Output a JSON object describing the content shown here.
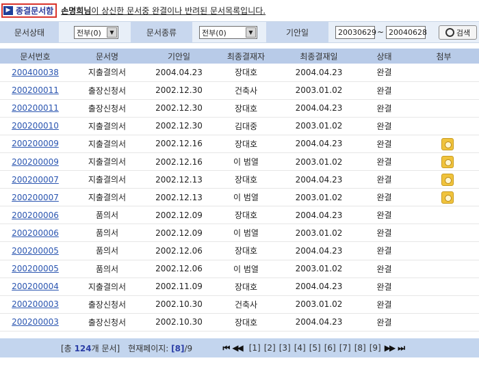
{
  "header": {
    "box_label": "종결문서함",
    "user_name": "손명희님",
    "message_rest": "이 상신한 문서중 완결이나 반려된 문서목록입니다."
  },
  "search": {
    "status_label": "문서상태",
    "status_value": "전부(0)",
    "type_label": "문서종류",
    "type_value": "전부(0)",
    "date_label": "기안일",
    "date_from": "20030629",
    "date_sep": "~",
    "date_to": "20040628",
    "search_button": "검색"
  },
  "table": {
    "columns": [
      "문서번호",
      "문서명",
      "기안일",
      "최종결재자",
      "최종결재일",
      "상태",
      "첨부"
    ],
    "rows": [
      {
        "id": "200400038",
        "name": "지출결의서",
        "draft": "2004.04.23",
        "approver": "장대호",
        "final": "2004.04.23",
        "status": "완결",
        "attach": false
      },
      {
        "id": "200200011",
        "name": "출장신청서",
        "draft": "2002.12.30",
        "approver": "건축사",
        "final": "2003.01.02",
        "status": "완결",
        "attach": false
      },
      {
        "id": "200200011",
        "name": "출장신청서",
        "draft": "2002.12.30",
        "approver": "장대호",
        "final": "2004.04.23",
        "status": "완결",
        "attach": false
      },
      {
        "id": "200200010",
        "name": "지출결의서",
        "draft": "2002.12.30",
        "approver": "김대중",
        "final": "2003.01.02",
        "status": "완결",
        "attach": false
      },
      {
        "id": "200200009",
        "name": "지출결의서",
        "draft": "2002.12.16",
        "approver": "장대호",
        "final": "2004.04.23",
        "status": "완결",
        "attach": true
      },
      {
        "id": "200200009",
        "name": "지출결의서",
        "draft": "2002.12.16",
        "approver": "이 범열",
        "final": "2003.01.02",
        "status": "완결",
        "attach": true
      },
      {
        "id": "200200007",
        "name": "지출결의서",
        "draft": "2002.12.13",
        "approver": "장대호",
        "final": "2004.04.23",
        "status": "완결",
        "attach": true
      },
      {
        "id": "200200007",
        "name": "지출결의서",
        "draft": "2002.12.13",
        "approver": "이 범열",
        "final": "2003.01.02",
        "status": "완결",
        "attach": true
      },
      {
        "id": "200200006",
        "name": "품의서",
        "draft": "2002.12.09",
        "approver": "장대호",
        "final": "2004.04.23",
        "status": "완결",
        "attach": false
      },
      {
        "id": "200200006",
        "name": "품의서",
        "draft": "2002.12.09",
        "approver": "이 범열",
        "final": "2003.01.02",
        "status": "완결",
        "attach": false
      },
      {
        "id": "200200005",
        "name": "품의서",
        "draft": "2002.12.06",
        "approver": "장대호",
        "final": "2004.04.23",
        "status": "완결",
        "attach": false
      },
      {
        "id": "200200005",
        "name": "품의서",
        "draft": "2002.12.06",
        "approver": "이 범열",
        "final": "2003.01.02",
        "status": "완결",
        "attach": false
      },
      {
        "id": "200200004",
        "name": "지출결의서",
        "draft": "2002.11.09",
        "approver": "장대호",
        "final": "2004.04.23",
        "status": "완결",
        "attach": false
      },
      {
        "id": "200200003",
        "name": "출장신청서",
        "draft": "2002.10.30",
        "approver": "건축사",
        "final": "2003.01.02",
        "status": "완결",
        "attach": false
      },
      {
        "id": "200200003",
        "name": "출장신청서",
        "draft": "2002.10.30",
        "approver": "장대호",
        "final": "2004.04.23",
        "status": "완결",
        "attach": false
      }
    ]
  },
  "footer": {
    "total_prefix": "[총",
    "total_count": "124",
    "total_suffix": "개 문서]",
    "page_label": "현재페이지:",
    "current_page": "[8]",
    "total_pages": "/9",
    "first": "⏮",
    "prev": "◀◀",
    "pages": [
      "[1]",
      "[2]",
      "[3]",
      "[4]",
      "[5]",
      "[6]",
      "[7]",
      "[8]",
      "[9]"
    ],
    "next": "▶▶",
    "last": "⏭"
  },
  "colors": {
    "accent": "#2b3b9c",
    "box_border": "#d9322a",
    "header_bg": "#b8cbe8",
    "footer_bg": "#c3d5ee",
    "link": "#2a55b0"
  }
}
